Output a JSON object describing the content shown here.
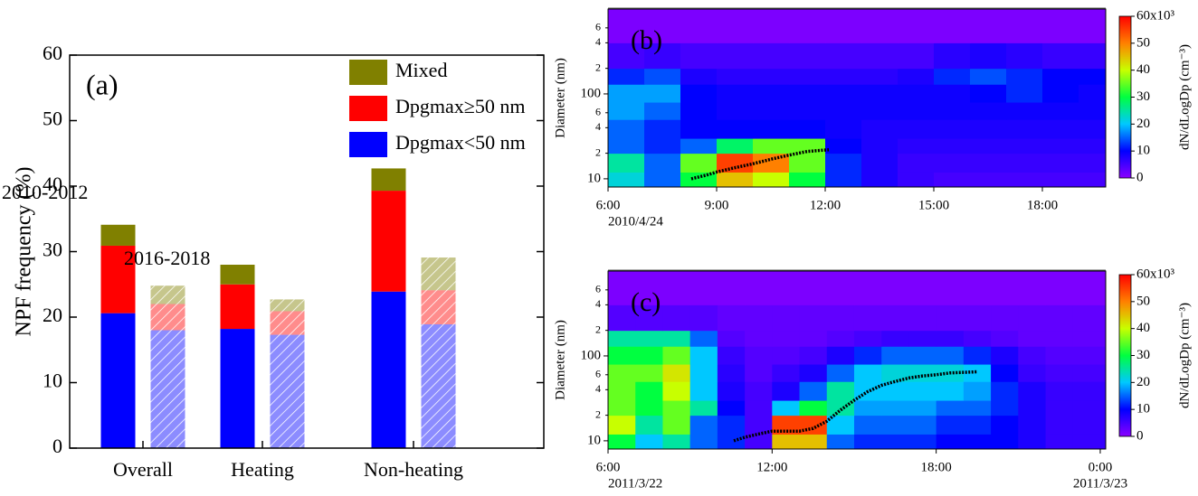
{
  "chart_data": [
    {
      "type": "bar",
      "stacked": true,
      "panel_label": "(a)",
      "ylabel": "NPF frequency (%)",
      "categories": [
        "Overall",
        "Heating",
        "Non-heating"
      ],
      "groups": [
        {
          "name": "2010-2012",
          "hatch": false
        },
        {
          "name": "2016-2018",
          "hatch": true
        }
      ],
      "series": [
        {
          "name": "Dpgmax<50 nm",
          "color": "#0000ff",
          "values": [
            [
              20.6,
              18.2,
              23.9
            ],
            [
              18.0,
              17.3,
              18.9
            ]
          ]
        },
        {
          "name": "Dpgmax≥50 nm",
          "color": "#ff0000",
          "values": [
            [
              10.3,
              6.8,
              15.4
            ],
            [
              4.0,
              3.6,
              5.2
            ]
          ]
        },
        {
          "name": "Mixed",
          "color": "#808000",
          "values": [
            [
              3.2,
              3.0,
              3.4
            ],
            [
              2.8,
              1.8,
              5.0
            ]
          ]
        }
      ],
      "ylim": [
        0,
        60
      ],
      "yticks": [
        0,
        10,
        20,
        30,
        40,
        50,
        60
      ]
    },
    {
      "type": "heatmap",
      "panel_label": "(b)",
      "ylabel": "Diameter (nm)",
      "log_y": true,
      "xlim": [
        6,
        19.75
      ],
      "xticks": [
        {
          "value": 6,
          "label": "6:00"
        },
        {
          "value": 9,
          "label": "9:00"
        },
        {
          "value": 12,
          "label": "12:00"
        },
        {
          "value": 15,
          "label": "15:00"
        },
        {
          "value": 18,
          "label": "18:00"
        }
      ],
      "date_ticks": [
        {
          "value": 6,
          "label": "2010/4/24"
        }
      ],
      "ylim": [
        8,
        1000
      ],
      "yticks": [
        10,
        {
          "value": 20,
          "label": "2"
        },
        {
          "value": 40,
          "label": "4"
        },
        {
          "value": 60,
          "label": "6"
        },
        100,
        {
          "value": 200,
          "label": "2"
        },
        {
          "value": 400,
          "label": "4"
        },
        {
          "value": 600,
          "label": "6"
        }
      ],
      "x_edges": [
        6,
        7,
        8,
        9,
        10,
        11,
        12,
        13,
        14,
        15,
        16,
        17,
        18,
        19,
        19.75
      ],
      "y_edges": [
        8,
        12,
        20,
        30,
        50,
        80,
        130,
        200,
        400,
        1000
      ],
      "z": [
        [
          22000,
          15000,
          30000,
          45000,
          40000,
          30000,
          12000,
          8000,
          6000,
          5000,
          5000,
          5000,
          5000,
          5000
        ],
        [
          25000,
          15000,
          35000,
          55000,
          50000,
          35000,
          12000,
          8000,
          6000,
          6000,
          6000,
          6000,
          6000,
          6000
        ],
        [
          15000,
          12000,
          15000,
          28000,
          35000,
          35000,
          10000,
          8000,
          7000,
          7000,
          7000,
          7000,
          7000,
          7000
        ],
        [
          15000,
          12000,
          10000,
          10000,
          10000,
          10000,
          9000,
          8000,
          8000,
          8000,
          8000,
          8000,
          8000,
          8000
        ],
        [
          18000,
          15000,
          10000,
          9000,
          9000,
          9000,
          9000,
          9000,
          9000,
          9000,
          9000,
          9000,
          9000,
          9000
        ],
        [
          18000,
          18000,
          10000,
          9000,
          9000,
          9000,
          9000,
          9000,
          9000,
          9000,
          10000,
          12000,
          10000,
          9000
        ],
        [
          12000,
          14000,
          8000,
          7000,
          7000,
          7000,
          7000,
          7000,
          8000,
          12000,
          14000,
          12000,
          10000,
          10000
        ],
        [
          5000,
          6000,
          5000,
          5000,
          5000,
          5000,
          5000,
          5000,
          5000,
          7000,
          8000,
          7000,
          6000,
          6000
        ],
        [
          1000,
          1000,
          1000,
          1000,
          1000,
          1000,
          1000,
          1000,
          1000,
          1000,
          1000,
          1000,
          1000,
          1000
        ]
      ],
      "clim": [
        0,
        60000
      ],
      "cticks": [
        0,
        {
          "value": 10000,
          "label": "10"
        },
        {
          "value": 20000,
          "label": "20"
        },
        {
          "value": 30000,
          "label": "30"
        },
        {
          "value": 40000,
          "label": "40"
        },
        {
          "value": 50000,
          "label": "50"
        },
        {
          "value": 60000,
          "label": "60x10³"
        }
      ],
      "colorbar_label": "dN/dLogDp (cm⁻³)",
      "colormap": [
        "#8a00ff",
        "#0000ff",
        "#00c8ff",
        "#00ff40",
        "#c8ff00",
        "#ff8000",
        "#ff0000"
      ],
      "growth": {
        "color": "#000000",
        "x": [
          8.3,
          8.7,
          9,
          9.5,
          10,
          10.5,
          11,
          11.5,
          12.1
        ],
        "y": [
          10,
          11,
          12,
          13.5,
          15,
          17,
          19,
          21,
          22
        ]
      }
    },
    {
      "type": "heatmap",
      "panel_label": "(c)",
      "ylabel": "Diameter (nm)",
      "log_y": true,
      "xlim": [
        6,
        24.2
      ],
      "xticks": [
        {
          "value": 6,
          "label": "6:00"
        },
        {
          "value": 12,
          "label": "12:00"
        },
        {
          "value": 18,
          "label": "18:00"
        },
        {
          "value": 24,
          "label": "0:00"
        }
      ],
      "date_ticks": [
        {
          "value": 6,
          "label": "2011/3/22"
        },
        {
          "value": 24,
          "label": "2011/3/23"
        }
      ],
      "ylim": [
        8,
        1000
      ],
      "yticks": [
        10,
        {
          "value": 20,
          "label": "2"
        },
        {
          "value": 40,
          "label": "4"
        },
        {
          "value": 60,
          "label": "6"
        },
        100,
        {
          "value": 200,
          "label": "2"
        },
        {
          "value": 400,
          "label": "4"
        },
        {
          "value": 600,
          "label": "6"
        }
      ],
      "x_edges": [
        6,
        7,
        8,
        9,
        10,
        11,
        12,
        13,
        14,
        15,
        16,
        17,
        18,
        19,
        20,
        21,
        22,
        23,
        24.2
      ],
      "y_edges": [
        8,
        12,
        20,
        30,
        50,
        80,
        130,
        200,
        400,
        1000
      ],
      "z": [
        [
          30000,
          20000,
          25000,
          15000,
          12000,
          5000,
          45000,
          45000,
          15000,
          12000,
          12000,
          12000,
          10000,
          10000,
          10000,
          8000,
          6000,
          6000
        ],
        [
          40000,
          25000,
          35000,
          15000,
          12000,
          5000,
          55000,
          55000,
          20000,
          15000,
          15000,
          15000,
          12000,
          12000,
          10000,
          8000,
          6000,
          6000
        ],
        [
          35000,
          30000,
          35000,
          25000,
          10000,
          5000,
          20000,
          30000,
          25000,
          18000,
          18000,
          18000,
          15000,
          15000,
          12000,
          8000,
          6000,
          6000
        ],
        [
          35000,
          30000,
          40000,
          20000,
          8000,
          5000,
          8000,
          15000,
          25000,
          20000,
          20000,
          20000,
          20000,
          18000,
          12000,
          8000,
          6000,
          6000
        ],
        [
          35000,
          35000,
          42000,
          20000,
          7000,
          4000,
          6000,
          8000,
          15000,
          20000,
          22000,
          22000,
          22000,
          20000,
          10000,
          6000,
          5000,
          5000
        ],
        [
          30000,
          30000,
          35000,
          20000,
          6000,
          4000,
          4000,
          5000,
          8000,
          12000,
          15000,
          15000,
          15000,
          12000,
          8000,
          5000,
          4000,
          4000
        ],
        [
          25000,
          25000,
          25000,
          15000,
          4000,
          3000,
          3000,
          3000,
          4000,
          5000,
          6000,
          6000,
          6000,
          5000,
          4000,
          3000,
          3000,
          3000
        ],
        [
          4000,
          4000,
          4000,
          4000,
          3000,
          3000,
          3000,
          3000,
          3000,
          3000,
          3000,
          3000,
          3000,
          3000,
          3000,
          3000,
          3000,
          3000
        ],
        [
          1000,
          1000,
          1000,
          1000,
          1000,
          1000,
          1000,
          1000,
          1000,
          1000,
          1000,
          1000,
          1000,
          1000,
          1000,
          1000,
          1000,
          1000
        ]
      ],
      "clim": [
        0,
        60000
      ],
      "cticks": [
        0,
        {
          "value": 10000,
          "label": "10"
        },
        {
          "value": 20000,
          "label": "20"
        },
        {
          "value": 30000,
          "label": "30"
        },
        {
          "value": 40000,
          "label": "40"
        },
        {
          "value": 50000,
          "label": "50"
        },
        {
          "value": 60000,
          "label": "60x10³"
        }
      ],
      "colorbar_label": "dN/dLogDp (cm⁻³)",
      "colormap": [
        "#8a00ff",
        "#0000ff",
        "#00c8ff",
        "#00ff40",
        "#c8ff00",
        "#ff8000",
        "#ff0000"
      ],
      "growth": {
        "color": "#000000",
        "x": [
          10.6,
          11,
          11.5,
          12,
          12.5,
          13,
          13.5,
          14,
          14.5,
          15,
          15.5,
          16,
          16.5,
          17,
          17.5,
          18,
          18.5,
          19,
          19.5
        ],
        "y": [
          10,
          11,
          12,
          13,
          13,
          13,
          14,
          17,
          23,
          30,
          38,
          45,
          50,
          55,
          58,
          60,
          63,
          64,
          65
        ]
      }
    }
  ]
}
